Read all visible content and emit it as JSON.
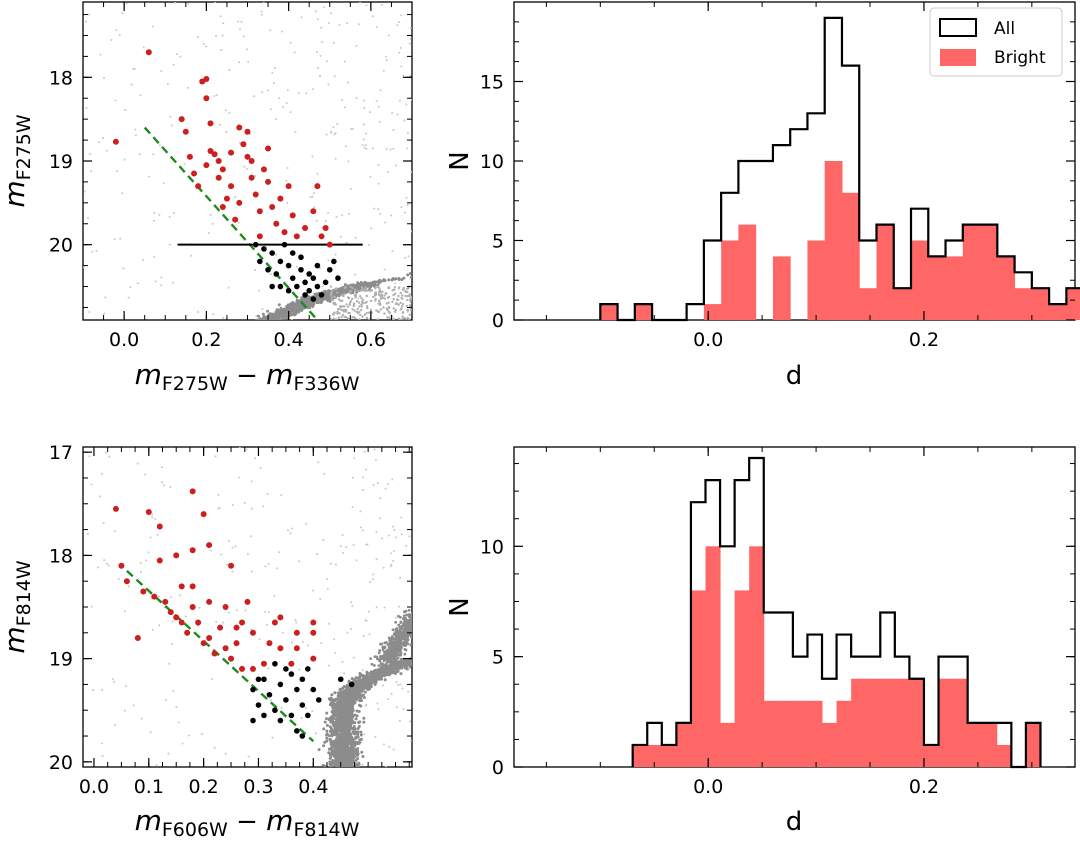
{
  "chart_data": [
    {
      "id": "top-left",
      "type": "scatter",
      "xlabel_main": "m",
      "xlabel_sub1": "F275W",
      "xlabel_minus": " − ",
      "xlabel_main2": "m",
      "xlabel_sub2": "F336W",
      "ylabel_main": "m",
      "ylabel_sub": "F275W",
      "xlim": [
        -0.1,
        0.7
      ],
      "ylim": [
        20.9,
        17.1
      ],
      "xticks": [
        0.0,
        0.2,
        0.4,
        0.6
      ],
      "xtick_labels": [
        "0.0",
        "0.2",
        "0.4",
        "0.6"
      ],
      "yticks": [
        18,
        19,
        20
      ],
      "ytick_labels": [
        "18",
        "19",
        "20"
      ],
      "colors": {
        "red": "#cc1f1f",
        "black": "#000000",
        "gray": "#8c8c8c",
        "dashed": "#1f8a1f"
      },
      "red_points": [
        [
          -0.02,
          18.77
        ],
        [
          0.06,
          17.7
        ],
        [
          0.14,
          18.5
        ],
        [
          0.15,
          18.65
        ],
        [
          0.16,
          18.95
        ],
        [
          0.17,
          19.15
        ],
        [
          0.18,
          19.3
        ],
        [
          0.19,
          18.05
        ],
        [
          0.2,
          18.02
        ],
        [
          0.2,
          18.25
        ],
        [
          0.21,
          18.55
        ],
        [
          0.21,
          18.88
        ],
        [
          0.22,
          18.92
        ],
        [
          0.23,
          19.0
        ],
        [
          0.2,
          19.05
        ],
        [
          0.23,
          19.2
        ],
        [
          0.24,
          19.1
        ],
        [
          0.25,
          19.45
        ],
        [
          0.24,
          19.55
        ],
        [
          0.26,
          19.3
        ],
        [
          0.27,
          19.7
        ],
        [
          0.28,
          19.5
        ],
        [
          0.28,
          18.6
        ],
        [
          0.29,
          18.8
        ],
        [
          0.3,
          18.65
        ],
        [
          0.3,
          18.95
        ],
        [
          0.31,
          19.2
        ],
        [
          0.32,
          19.4
        ],
        [
          0.33,
          19.6
        ],
        [
          0.33,
          19.9
        ],
        [
          0.35,
          18.85
        ],
        [
          0.35,
          19.25
        ],
        [
          0.36,
          19.55
        ],
        [
          0.37,
          19.75
        ],
        [
          0.38,
          19.45
        ],
        [
          0.39,
          19.85
        ],
        [
          0.4,
          19.3
        ],
        [
          0.41,
          19.65
        ],
        [
          0.42,
          19.9
        ],
        [
          0.44,
          19.8
        ],
        [
          0.46,
          19.6
        ],
        [
          0.47,
          19.3
        ],
        [
          0.48,
          19.9
        ],
        [
          0.49,
          19.8
        ],
        [
          0.5,
          20.0
        ],
        [
          0.34,
          19.1
        ],
        [
          0.26,
          18.9
        ],
        [
          0.31,
          19.0
        ]
      ],
      "black_points": [
        [
          0.32,
          20.0
        ],
        [
          0.33,
          20.2
        ],
        [
          0.34,
          20.05
        ],
        [
          0.35,
          20.3
        ],
        [
          0.36,
          20.1
        ],
        [
          0.37,
          20.35
        ],
        [
          0.38,
          20.2
        ],
        [
          0.38,
          20.5
        ],
        [
          0.39,
          20.0
        ],
        [
          0.4,
          20.25
        ],
        [
          0.41,
          20.4
        ],
        [
          0.41,
          20.1
        ],
        [
          0.42,
          20.5
        ],
        [
          0.43,
          20.3
        ],
        [
          0.43,
          20.15
        ],
        [
          0.44,
          20.45
        ],
        [
          0.44,
          20.6
        ],
        [
          0.45,
          20.35
        ],
        [
          0.45,
          20.55
        ],
        [
          0.46,
          20.4
        ],
        [
          0.47,
          20.5
        ],
        [
          0.47,
          20.25
        ],
        [
          0.48,
          20.6
        ],
        [
          0.49,
          20.45
        ],
        [
          0.5,
          20.3
        ],
        [
          0.51,
          20.2
        ],
        [
          0.52,
          20.4
        ],
        [
          0.36,
          20.5
        ],
        [
          0.4,
          20.55
        ],
        [
          0.46,
          20.65
        ]
      ],
      "hline": {
        "y": 20.0,
        "x": [
          0.13,
          0.58
        ]
      },
      "dashed_line": {
        "x": [
          0.05,
          0.47
        ],
        "y": [
          18.6,
          20.9
        ]
      }
    },
    {
      "id": "top-right",
      "type": "histogram",
      "xlabel": "d",
      "ylabel": "N",
      "xlim": [
        -0.18,
        0.34
      ],
      "ylim": [
        0,
        20
      ],
      "xticks": [
        0.0,
        0.2
      ],
      "xtick_labels": [
        "0.0",
        "0.2"
      ],
      "yticks": [
        0,
        5,
        10,
        15
      ],
      "ytick_labels": [
        "0",
        "5",
        "10",
        "15"
      ],
      "bin_start": -0.1,
      "bin_width": 0.016,
      "all_counts": [
        1,
        0,
        1,
        0,
        0,
        1,
        5,
        8,
        10,
        10,
        11,
        12,
        13,
        19,
        16,
        5,
        6,
        2,
        7,
        4,
        5,
        6,
        6,
        4,
        3,
        2,
        1,
        2,
        3,
        2
      ],
      "bright_counts": [
        1,
        0,
        1,
        0,
        0,
        0,
        1,
        5,
        6,
        0,
        4,
        0,
        5,
        10,
        8,
        2,
        6,
        2,
        5,
        4,
        4,
        6,
        6,
        4,
        2,
        2,
        1,
        2,
        2,
        2
      ],
      "legend": [
        {
          "label": "All",
          "style": "outline"
        },
        {
          "label": "Bright",
          "style": "filled"
        }
      ],
      "legend_position": "top-right",
      "colors": {
        "all": "#000000",
        "bright": "#ff6666"
      }
    },
    {
      "id": "bottom-left",
      "type": "scatter",
      "xlabel_main": "m",
      "xlabel_sub1": "F606W",
      "xlabel_minus": " − ",
      "xlabel_main2": "m",
      "xlabel_sub2": "F814W",
      "ylabel_main": "m",
      "ylabel_sub": "F814W",
      "xlim": [
        -0.02,
        0.58
      ],
      "ylim": [
        20.05,
        16.95
      ],
      "xticks": [
        0.0,
        0.1,
        0.2,
        0.3,
        0.4
      ],
      "xtick_labels": [
        "0.0",
        "0.1",
        "0.2",
        "0.3",
        "0.4"
      ],
      "yticks": [
        17,
        18,
        19,
        20
      ],
      "ytick_labels": [
        "17",
        "18",
        "19",
        "20"
      ],
      "colors": {
        "red": "#cc1f1f",
        "black": "#000000",
        "gray": "#8c8c8c",
        "dashed": "#1f8a1f"
      },
      "red_points": [
        [
          0.04,
          17.55
        ],
        [
          0.05,
          18.1
        ],
        [
          0.06,
          18.25
        ],
        [
          0.1,
          17.58
        ],
        [
          0.11,
          18.4
        ],
        [
          0.12,
          17.72
        ],
        [
          0.12,
          18.05
        ],
        [
          0.13,
          18.45
        ],
        [
          0.14,
          18.55
        ],
        [
          0.15,
          18.6
        ],
        [
          0.16,
          18.3
        ],
        [
          0.16,
          18.65
        ],
        [
          0.17,
          18.75
        ],
        [
          0.18,
          17.38
        ],
        [
          0.18,
          18.3
        ],
        [
          0.18,
          18.5
        ],
        [
          0.19,
          18.65
        ],
        [
          0.2,
          17.6
        ],
        [
          0.2,
          18.85
        ],
        [
          0.21,
          18.8
        ],
        [
          0.21,
          18.45
        ],
        [
          0.22,
          18.95
        ],
        [
          0.23,
          18.7
        ],
        [
          0.24,
          18.5
        ],
        [
          0.24,
          18.9
        ],
        [
          0.25,
          18.1
        ],
        [
          0.25,
          19.0
        ],
        [
          0.26,
          18.85
        ],
        [
          0.27,
          18.65
        ],
        [
          0.27,
          19.1
        ],
        [
          0.28,
          18.45
        ],
        [
          0.29,
          18.75
        ],
        [
          0.29,
          19.1
        ],
        [
          0.31,
          19.05
        ],
        [
          0.32,
          18.85
        ],
        [
          0.33,
          18.65
        ],
        [
          0.34,
          18.6
        ],
        [
          0.34,
          18.9
        ],
        [
          0.36,
          19.05
        ],
        [
          0.37,
          18.9
        ],
        [
          0.37,
          18.75
        ],
        [
          0.4,
          18.65
        ],
        [
          0.4,
          18.75
        ],
        [
          0.4,
          19.0
        ],
        [
          0.21,
          17.9
        ],
        [
          0.18,
          17.95
        ],
        [
          0.26,
          18.7
        ],
        [
          0.15,
          18.0
        ],
        [
          0.09,
          18.35
        ],
        [
          0.08,
          18.8
        ]
      ],
      "black_points": [
        [
          0.29,
          19.3
        ],
        [
          0.3,
          19.45
        ],
        [
          0.31,
          19.2
        ],
        [
          0.32,
          19.35
        ],
        [
          0.33,
          19.5
        ],
        [
          0.34,
          19.25
        ],
        [
          0.34,
          19.6
        ],
        [
          0.35,
          19.4
        ],
        [
          0.36,
          19.15
        ],
        [
          0.36,
          19.55
        ],
        [
          0.37,
          19.3
        ],
        [
          0.37,
          19.7
        ],
        [
          0.38,
          19.45
        ],
        [
          0.38,
          19.2
        ],
        [
          0.39,
          19.55
        ],
        [
          0.4,
          19.3
        ],
        [
          0.41,
          19.4
        ],
        [
          0.33,
          19.05
        ],
        [
          0.35,
          19.1
        ],
        [
          0.29,
          19.6
        ],
        [
          0.31,
          19.55
        ],
        [
          0.39,
          19.1
        ],
        [
          0.45,
          19.2
        ],
        [
          0.47,
          19.25
        ],
        [
          0.38,
          19.75
        ],
        [
          0.3,
          19.2
        ]
      ],
      "dashed_line": {
        "x": [
          0.06,
          0.4
        ],
        "y": [
          18.15,
          19.8
        ]
      }
    },
    {
      "id": "bottom-right",
      "type": "histogram",
      "xlabel": "d",
      "ylabel": "N",
      "xlim": [
        -0.18,
        0.34
      ],
      "ylim": [
        0,
        14.5
      ],
      "xticks": [
        0.0,
        0.2
      ],
      "xtick_labels": [
        "0.0",
        "0.2"
      ],
      "yticks": [
        0,
        5,
        10
      ],
      "ytick_labels": [
        "0",
        "5",
        "10"
      ],
      "bin_start": -0.07,
      "bin_width": 0.0135,
      "all_counts": [
        1,
        2,
        1,
        2,
        12,
        13,
        10,
        13,
        14,
        7,
        7,
        5,
        6,
        4,
        6,
        5,
        5,
        7,
        5,
        4,
        1,
        5,
        5,
        2,
        2,
        2,
        0,
        2
      ],
      "bright_counts": [
        1,
        1,
        1,
        2,
        8,
        10,
        2,
        8,
        10,
        3,
        3,
        3,
        3,
        2,
        3,
        4,
        4,
        4,
        4,
        4,
        1,
        4,
        4,
        2,
        2,
        1,
        0,
        2
      ],
      "colors": {
        "all": "#000000",
        "bright": "#ff6666"
      }
    }
  ]
}
